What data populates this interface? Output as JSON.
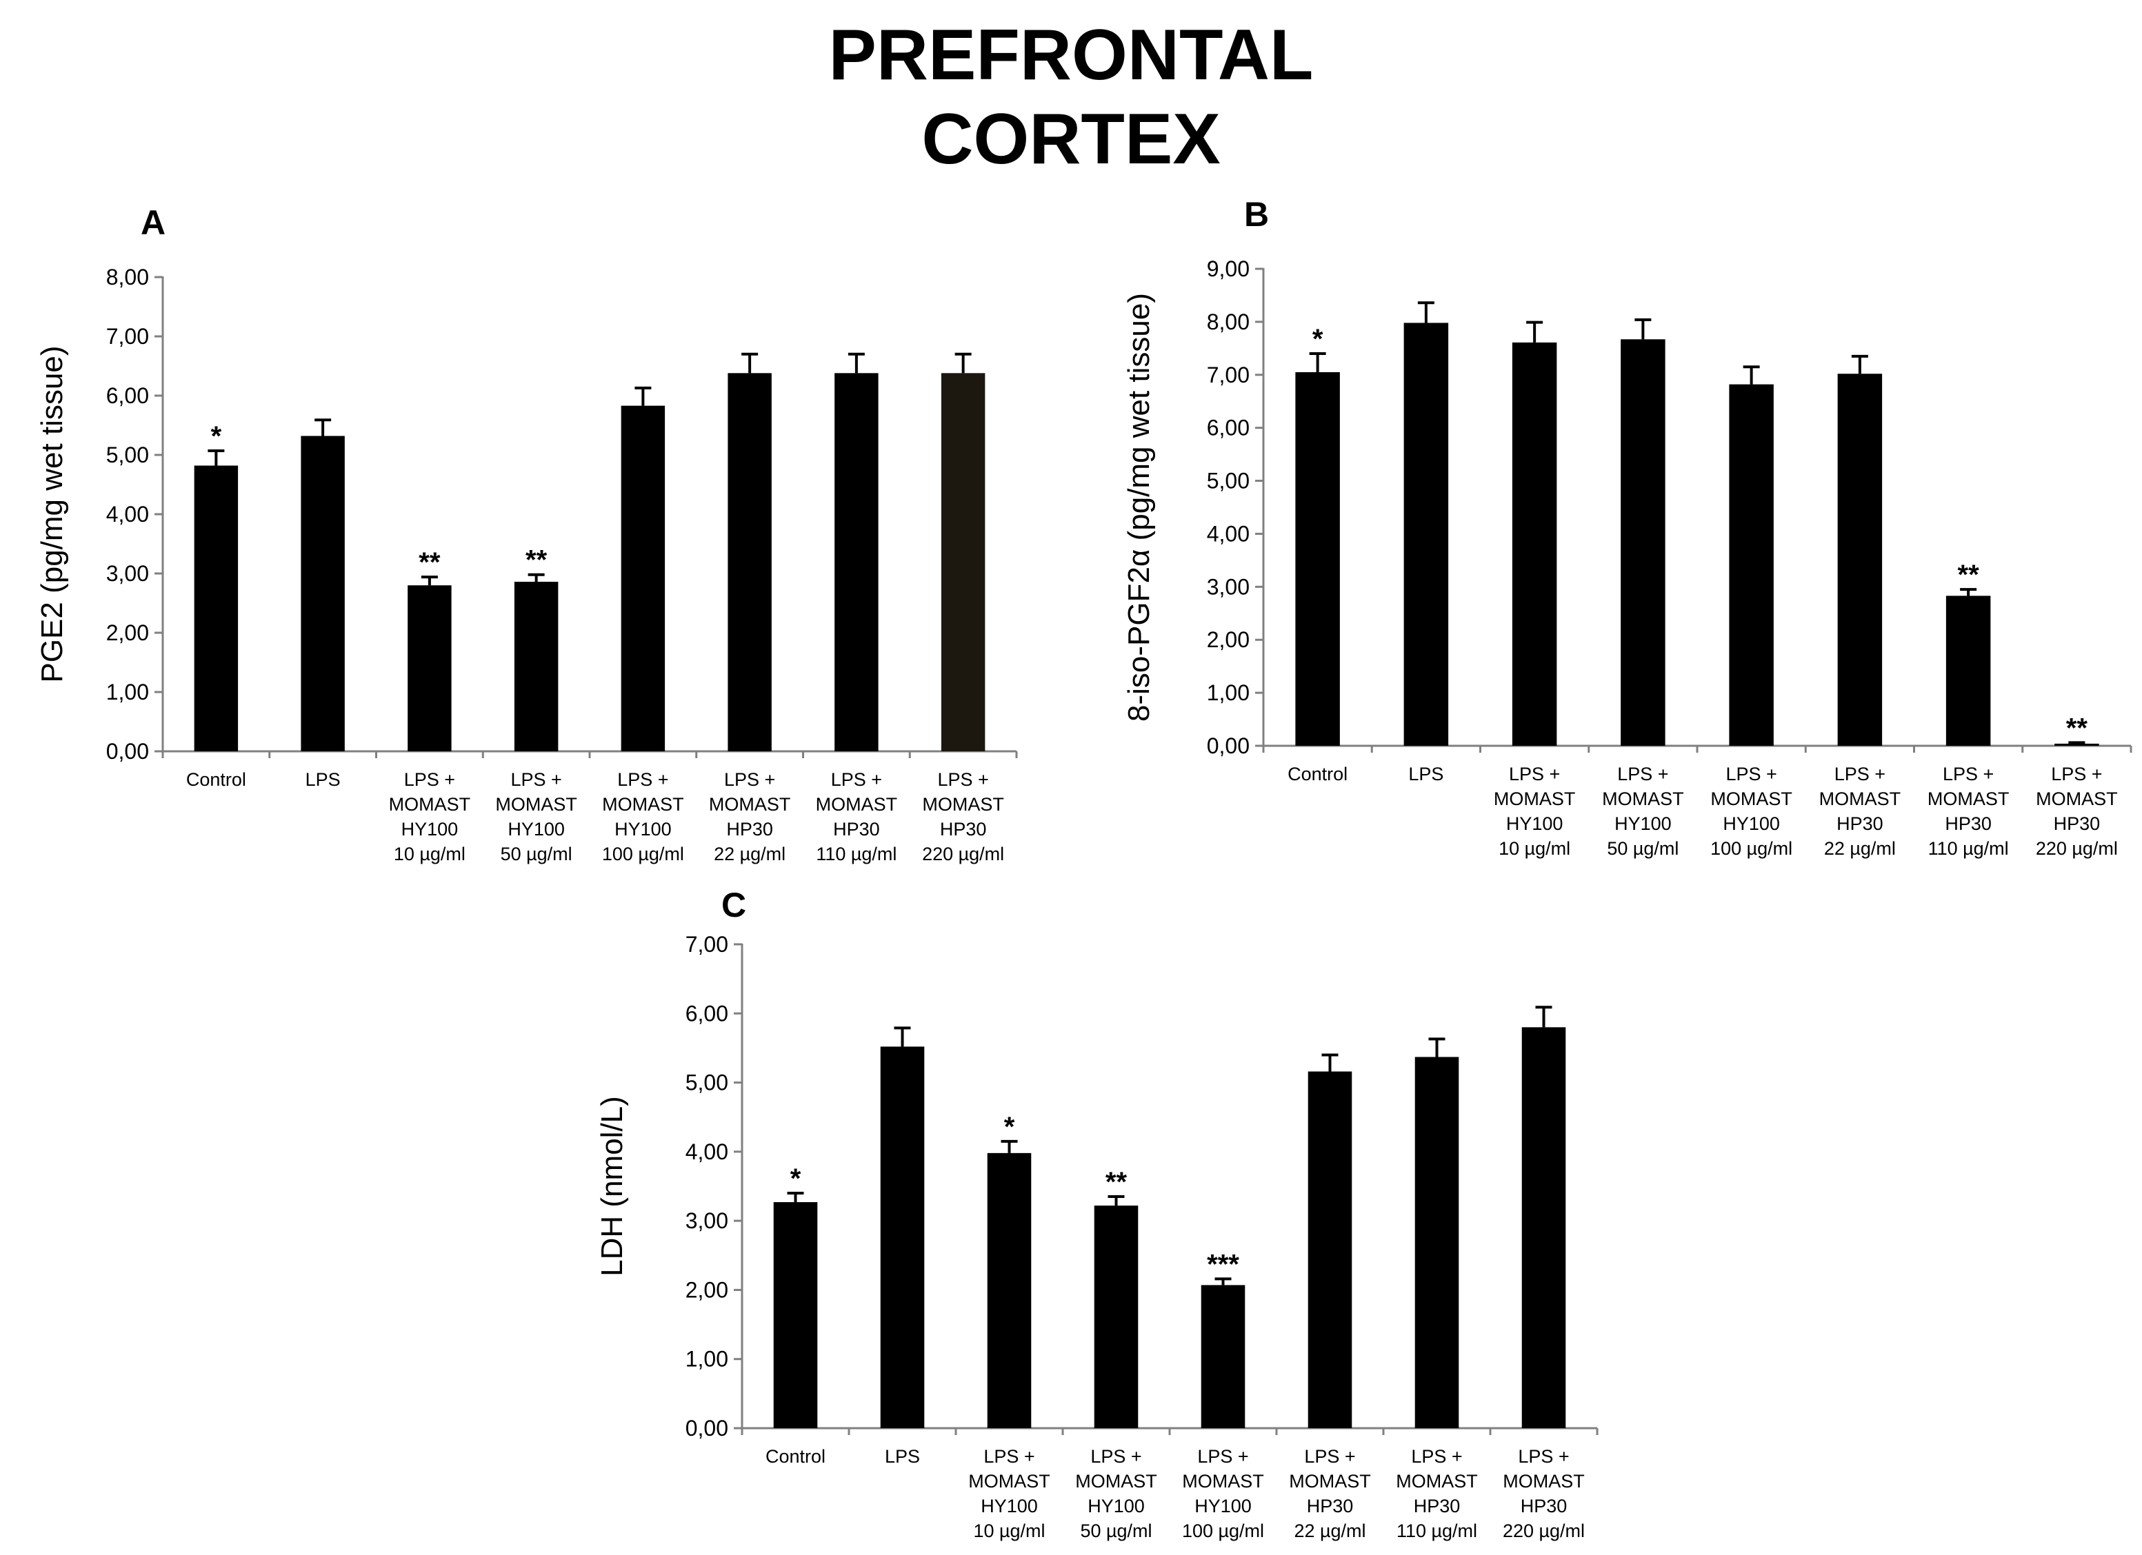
{
  "figure_title": {
    "line1": "PREFRONTAL",
    "line2": "CORTEX"
  },
  "colors": {
    "bar": "#000000",
    "axis": "#808080",
    "background": "#ffffff"
  },
  "chart_data": [
    {
      "panel": "A",
      "type": "bar",
      "ylabel": "PGE2 (pg/mg wet tissue)",
      "ylim": [
        0,
        8
      ],
      "yticks": [
        "0,00",
        "1,00",
        "2,00",
        "3,00",
        "4,00",
        "5,00",
        "6,00",
        "7,00",
        "8,00"
      ],
      "categories": [
        [
          "Control"
        ],
        [
          "LPS"
        ],
        [
          "LPS +",
          "MOMAST",
          "HY100",
          "10 µg/ml"
        ],
        [
          "LPS +",
          "MOMAST",
          "HY100",
          "50 µg/ml"
        ],
        [
          "LPS +",
          "MOMAST",
          "HY100",
          "100 µg/ml"
        ],
        [
          "LPS +",
          "MOMAST",
          "HP30",
          "22 µg/ml"
        ],
        [
          "LPS +",
          "MOMAST",
          "HP30",
          "110 µg/ml"
        ],
        [
          "LPS +",
          "MOMAST",
          "HP30",
          "220 µg/ml"
        ]
      ],
      "values": [
        4.82,
        5.32,
        2.8,
        2.86,
        5.83,
        6.38,
        6.38,
        6.38
      ],
      "errors": [
        0.25,
        0.27,
        0.14,
        0.12,
        0.3,
        0.32,
        0.32,
        0.32
      ],
      "significance": [
        "*",
        "",
        "**",
        "**",
        "",
        "",
        "",
        ""
      ],
      "bar_colors": [
        "#000000",
        "#000000",
        "#000000",
        "#000000",
        "#000000",
        "#000000",
        "#000000",
        "#1c1810"
      ]
    },
    {
      "panel": "B",
      "type": "bar",
      "ylabel": "8-iso-PGF2α (pg/mg wet tissue)",
      "ylim": [
        0,
        9
      ],
      "yticks": [
        "0,00",
        "1,00",
        "2,00",
        "3,00",
        "4,00",
        "5,00",
        "6,00",
        "7,00",
        "8,00",
        "9,00"
      ],
      "categories": [
        [
          "Control"
        ],
        [
          "LPS"
        ],
        [
          "LPS +",
          "MOMAST",
          "HY100",
          "10 µg/ml"
        ],
        [
          "LPS +",
          "MOMAST",
          "HY100",
          "50 µg/ml"
        ],
        [
          "LPS +",
          "MOMAST",
          "HY100",
          "100 µg/ml"
        ],
        [
          "LPS +",
          "MOMAST",
          "HP30",
          "22 µg/ml"
        ],
        [
          "LPS +",
          "MOMAST",
          "HP30",
          "110 µg/ml"
        ],
        [
          "LPS +",
          "MOMAST",
          "HP30",
          "220 µg/ml"
        ]
      ],
      "values": [
        7.05,
        7.98,
        7.61,
        7.67,
        6.82,
        7.02,
        2.83,
        0.04
      ],
      "errors": [
        0.35,
        0.38,
        0.38,
        0.37,
        0.33,
        0.33,
        0.12,
        0.02
      ],
      "significance": [
        "*",
        "",
        "",
        "",
        "",
        "",
        "**",
        "**"
      ],
      "bar_colors": [
        "#000000",
        "#000000",
        "#000000",
        "#000000",
        "#000000",
        "#000000",
        "#000000",
        "#000000"
      ]
    },
    {
      "panel": "C",
      "type": "bar",
      "ylabel": "LDH (nmol/L)",
      "ylim": [
        0,
        7
      ],
      "yticks": [
        "0,00",
        "1,00",
        "2,00",
        "3,00",
        "4,00",
        "5,00",
        "6,00",
        "7,00"
      ],
      "categories": [
        [
          "Control"
        ],
        [
          "LPS"
        ],
        [
          "LPS +",
          "MOMAST",
          "HY100",
          "10 µg/ml"
        ],
        [
          "LPS +",
          "MOMAST",
          "HY100",
          "50 µg/ml"
        ],
        [
          "LPS +",
          "MOMAST",
          "HY100",
          "100 µg/ml"
        ],
        [
          "LPS +",
          "MOMAST",
          "HP30",
          "22 µg/ml"
        ],
        [
          "LPS +",
          "MOMAST",
          "HP30",
          "110 µg/ml"
        ],
        [
          "LPS +",
          "MOMAST",
          "HP30",
          "220 µg/ml"
        ]
      ],
      "values": [
        3.27,
        5.52,
        3.98,
        3.22,
        2.07,
        5.16,
        5.37,
        5.8
      ],
      "errors": [
        0.13,
        0.27,
        0.17,
        0.13,
        0.09,
        0.24,
        0.26,
        0.29
      ],
      "significance": [
        "*",
        "",
        "*",
        "**",
        "***",
        "",
        "",
        ""
      ],
      "bar_colors": [
        "#000000",
        "#000000",
        "#000000",
        "#000000",
        "#000000",
        "#000000",
        "#000000",
        "#000000"
      ]
    }
  ]
}
